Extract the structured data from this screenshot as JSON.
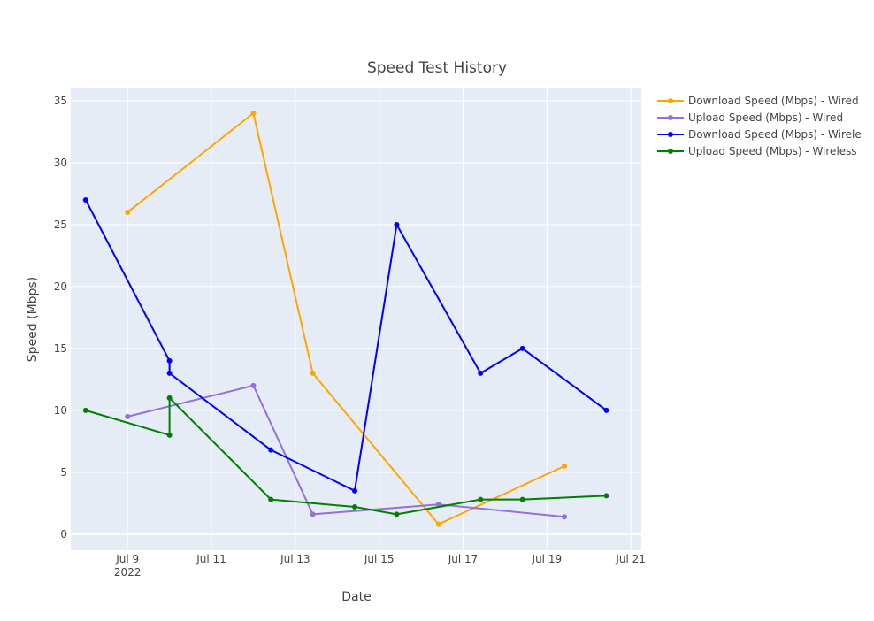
{
  "chart_data": {
    "type": "line",
    "title": "Speed Test History",
    "xlabel": "Date",
    "ylabel": "Speed (Mbps)",
    "xlim": [
      "2022-07-07T15:30:00",
      "2022-07-21T06:00:00"
    ],
    "ylim": [
      -1.3,
      36
    ],
    "y_ticks": [
      0,
      5,
      10,
      15,
      20,
      25,
      30,
      35
    ],
    "x_ticks": [
      {
        "date": "2022-07-09",
        "label": "Jul 9",
        "sublabel": "2022"
      },
      {
        "date": "2022-07-11",
        "label": "Jul 11",
        "sublabel": ""
      },
      {
        "date": "2022-07-13",
        "label": "Jul 13",
        "sublabel": ""
      },
      {
        "date": "2022-07-15",
        "label": "Jul 15",
        "sublabel": ""
      },
      {
        "date": "2022-07-17",
        "label": "Jul 17",
        "sublabel": ""
      },
      {
        "date": "2022-07-19",
        "label": "Jul 19",
        "sublabel": ""
      },
      {
        "date": "2022-07-21",
        "label": "Jul 21",
        "sublabel": ""
      }
    ],
    "grid": true,
    "legend_position": "right",
    "series": [
      {
        "name": "Download Speed (Mbps) - Wired",
        "color": "#FFA500",
        "points": [
          {
            "x": "2022-07-09T00:00:00",
            "y": 26
          },
          {
            "x": "2022-07-12T00:00:00",
            "y": 34
          },
          {
            "x": "2022-07-13T10:00:00",
            "y": 13
          },
          {
            "x": "2022-07-16T10:00:00",
            "y": 0.8
          },
          {
            "x": "2022-07-19T10:00:00",
            "y": 5.5
          }
        ]
      },
      {
        "name": "Upload Speed (Mbps) - Wired",
        "color": "#9370DB",
        "points": [
          {
            "x": "2022-07-09T00:00:00",
            "y": 9.5
          },
          {
            "x": "2022-07-12T00:00:00",
            "y": 12
          },
          {
            "x": "2022-07-13T10:00:00",
            "y": 1.6
          },
          {
            "x": "2022-07-16T10:00:00",
            "y": 2.4
          },
          {
            "x": "2022-07-19T10:00:00",
            "y": 1.4
          }
        ]
      },
      {
        "name": "Download Speed (Mbps) - Wirele",
        "color": "#0000FF",
        "points": [
          {
            "x": "2022-07-08T00:00:00",
            "y": 27
          },
          {
            "x": "2022-07-10T00:00:00",
            "y": 14
          },
          {
            "x": "2022-07-10T00:00:00",
            "y": 13
          },
          {
            "x": "2022-07-12T10:00:00",
            "y": 6.8
          },
          {
            "x": "2022-07-14T10:00:00",
            "y": 3.5
          },
          {
            "x": "2022-07-15T10:00:00",
            "y": 25
          },
          {
            "x": "2022-07-17T10:00:00",
            "y": 13
          },
          {
            "x": "2022-07-18T10:00:00",
            "y": 15
          },
          {
            "x": "2022-07-20T10:00:00",
            "y": 10
          }
        ]
      },
      {
        "name": "Upload Speed (Mbps) - Wireless",
        "color": "#008000",
        "points": [
          {
            "x": "2022-07-08T00:00:00",
            "y": 10
          },
          {
            "x": "2022-07-10T00:00:00",
            "y": 8
          },
          {
            "x": "2022-07-10T00:00:00",
            "y": 11
          },
          {
            "x": "2022-07-12T10:00:00",
            "y": 2.8
          },
          {
            "x": "2022-07-14T10:00:00",
            "y": 2.2
          },
          {
            "x": "2022-07-15T10:00:00",
            "y": 1.6
          },
          {
            "x": "2022-07-17T10:00:00",
            "y": 2.8
          },
          {
            "x": "2022-07-18T10:00:00",
            "y": 2.8
          },
          {
            "x": "2022-07-20T10:00:00",
            "y": 3.1
          }
        ]
      }
    ]
  },
  "colors": {
    "plot_background": "#E5ECF6",
    "grid": "#FFFFFF",
    "text": "#444444"
  }
}
